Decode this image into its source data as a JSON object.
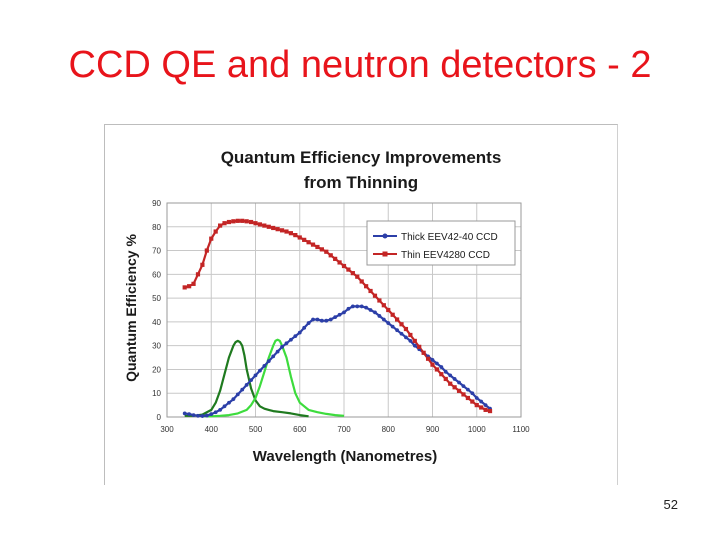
{
  "slide": {
    "title": "CCD QE and neutron detectors - 2",
    "page_number": "52"
  },
  "chart_data": {
    "type": "line",
    "title": "Quantum Efficiency Improvements",
    "subtitle": "from Thinning",
    "xlabel": "Wavelength (Nanometres)",
    "ylabel": "Quantum Efficiency %",
    "xlim": [
      300,
      1100
    ],
    "ylim": [
      0,
      90
    ],
    "xticks": [
      300,
      400,
      500,
      600,
      700,
      800,
      900,
      1000,
      1100
    ],
    "yticks": [
      0,
      10,
      20,
      30,
      40,
      50,
      60,
      70,
      80,
      90
    ],
    "grid": true,
    "legend_position": "top-right",
    "colors": {
      "thick": "#2c3fa8",
      "thin": "#c32525",
      "dark_green": "#1f7a1f",
      "light_green": "#3ddc3d"
    },
    "series": [
      {
        "name": "Thick EEV42-40 CCD",
        "color": "#2c3fa8",
        "marker": true,
        "x": [
          340,
          350,
          360,
          370,
          380,
          390,
          400,
          410,
          420,
          430,
          440,
          450,
          460,
          470,
          480,
          490,
          500,
          510,
          520,
          530,
          540,
          550,
          560,
          570,
          580,
          590,
          600,
          610,
          620,
          630,
          640,
          650,
          660,
          670,
          680,
          690,
          700,
          710,
          720,
          730,
          740,
          750,
          760,
          770,
          780,
          790,
          800,
          810,
          820,
          830,
          840,
          850,
          860,
          870,
          880,
          890,
          900,
          910,
          920,
          930,
          940,
          950,
          960,
          970,
          980,
          990,
          1000,
          1010,
          1020,
          1030
        ],
        "y": [
          1.5,
          1.2,
          0.8,
          0.5,
          0.4,
          0.6,
          1.2,
          2.0,
          3.0,
          4.5,
          6.0,
          7.5,
          9.5,
          11.5,
          13.5,
          15.5,
          17.5,
          19.5,
          21.5,
          23.5,
          25.5,
          27.5,
          29.5,
          31.0,
          32.5,
          34.0,
          35.5,
          37.5,
          39.5,
          41.0,
          41.0,
          40.5,
          40.5,
          41.0,
          42.0,
          43.0,
          44.0,
          45.5,
          46.5,
          46.5,
          46.5,
          46.0,
          45.0,
          44.0,
          42.5,
          41.0,
          39.5,
          38.0,
          36.5,
          35.0,
          33.5,
          32.0,
          30.0,
          28.5,
          27.0,
          25.5,
          24.0,
          22.5,
          21.0,
          19.0,
          17.5,
          16.0,
          14.5,
          13.0,
          11.5,
          10.0,
          8.0,
          6.5,
          5.0,
          3.5
        ]
      },
      {
        "name": "Thin EEV4280 CCD",
        "color": "#c32525",
        "marker": true,
        "x": [
          340,
          350,
          360,
          370,
          380,
          390,
          400,
          410,
          420,
          430,
          440,
          450,
          460,
          470,
          480,
          490,
          500,
          510,
          520,
          530,
          540,
          550,
          560,
          570,
          580,
          590,
          600,
          610,
          620,
          630,
          640,
          650,
          660,
          670,
          680,
          690,
          700,
          710,
          720,
          730,
          740,
          750,
          760,
          770,
          780,
          790,
          800,
          810,
          820,
          830,
          840,
          850,
          860,
          870,
          880,
          890,
          900,
          910,
          920,
          930,
          940,
          950,
          960,
          970,
          980,
          990,
          1000,
          1010,
          1020,
          1030
        ],
        "y": [
          54.5,
          55.0,
          56.0,
          60.0,
          64.0,
          70.0,
          75.0,
          78.0,
          80.5,
          81.5,
          82.0,
          82.3,
          82.5,
          82.5,
          82.3,
          82.0,
          81.5,
          81.0,
          80.5,
          80.0,
          79.5,
          79.0,
          78.5,
          78.0,
          77.3,
          76.5,
          75.5,
          74.5,
          73.5,
          72.5,
          71.5,
          70.5,
          69.5,
          68.0,
          66.5,
          65.0,
          63.5,
          62.0,
          60.5,
          59.0,
          57.0,
          55.0,
          53.0,
          51.0,
          49.0,
          47.0,
          45.0,
          43.0,
          41.0,
          39.0,
          37.0,
          34.5,
          32.0,
          29.5,
          27.0,
          24.5,
          22.0,
          20.0,
          18.0,
          16.0,
          14.0,
          12.5,
          11.0,
          9.5,
          8.0,
          6.5,
          5.0,
          4.0,
          3.0,
          2.5
        ]
      },
      {
        "name": "",
        "color": "#1f7a1f",
        "marker": false,
        "x": [
          340,
          360,
          380,
          400,
          410,
          420,
          430,
          440,
          450,
          455,
          460,
          465,
          470,
          475,
          480,
          490,
          500,
          510,
          520,
          530,
          540,
          560,
          580,
          600,
          620
        ],
        "y": [
          0.5,
          0.5,
          1.0,
          3.0,
          6.0,
          11.0,
          18.0,
          25.0,
          30.0,
          31.5,
          32.0,
          31.5,
          30.0,
          26.0,
          20.0,
          12.0,
          7.0,
          4.5,
          3.5,
          3.0,
          2.5,
          2.0,
          1.5,
          0.8,
          0.3
        ]
      },
      {
        "name": "",
        "color": "#3ddc3d",
        "marker": false,
        "x": [
          380,
          400,
          420,
          440,
          460,
          480,
          490,
          500,
          510,
          520,
          530,
          540,
          545,
          550,
          555,
          560,
          570,
          580,
          590,
          600,
          620,
          640,
          660,
          680,
          700
        ],
        "y": [
          0.3,
          0.3,
          0.5,
          0.8,
          1.5,
          3.0,
          5.0,
          8.0,
          13.0,
          19.0,
          25.0,
          30.0,
          32.0,
          32.5,
          32.0,
          30.0,
          25.0,
          17.0,
          10.0,
          6.0,
          3.0,
          2.0,
          1.3,
          0.8,
          0.5
        ]
      }
    ]
  }
}
